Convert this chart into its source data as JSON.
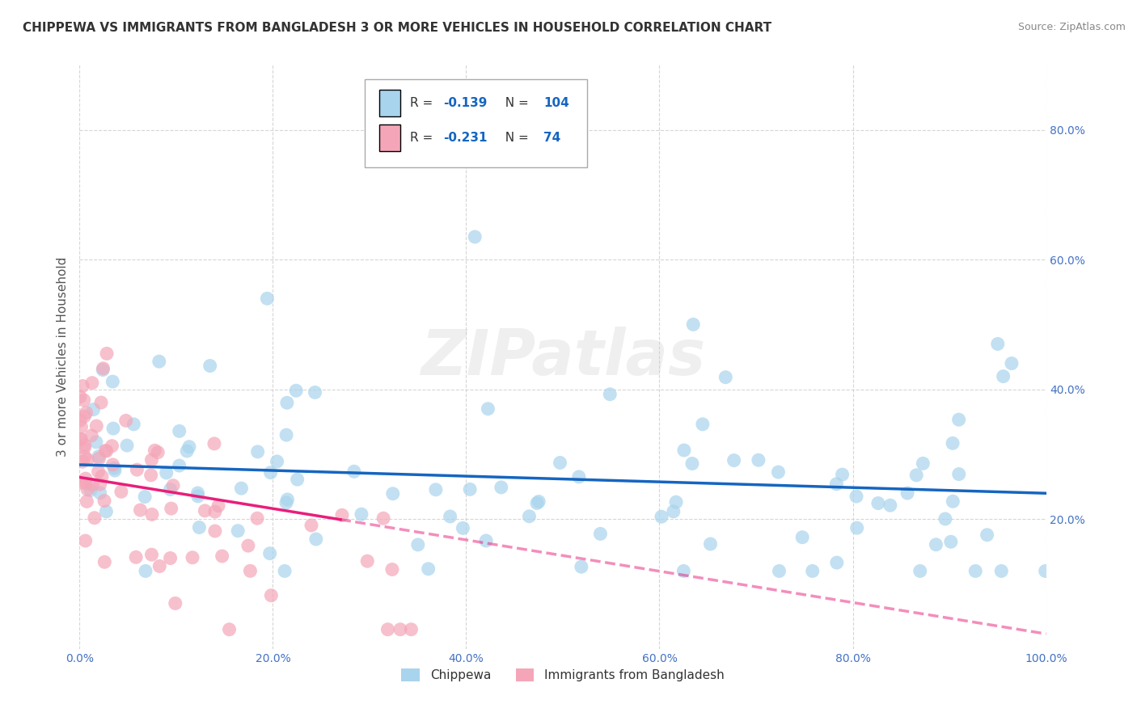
{
  "title": "CHIPPEWA VS IMMIGRANTS FROM BANGLADESH 3 OR MORE VEHICLES IN HOUSEHOLD CORRELATION CHART",
  "source": "Source: ZipAtlas.com",
  "ylabel": "3 or more Vehicles in Household",
  "xlim": [
    0.0,
    1.0
  ],
  "ylim": [
    0.0,
    0.9
  ],
  "xtick_labels": [
    "0.0%",
    "20.0%",
    "40.0%",
    "60.0%",
    "80.0%",
    "100.0%"
  ],
  "xtick_vals": [
    0.0,
    0.2,
    0.4,
    0.6,
    0.8,
    1.0
  ],
  "ytick_labels": [
    "20.0%",
    "40.0%",
    "60.0%",
    "80.0%"
  ],
  "ytick_vals": [
    0.2,
    0.4,
    0.6,
    0.8
  ],
  "chippewa_color": "#a8d4ed",
  "bangladesh_color": "#f4a6b8",
  "chippewa_line_color": "#1565c0",
  "bangladesh_line_color": "#e91e7a",
  "chippewa_R": -0.139,
  "chippewa_N": 104,
  "bangladesh_R": -0.231,
  "bangladesh_N": 74,
  "legend_label_1": "Chippewa",
  "legend_label_2": "Immigrants from Bangladesh",
  "watermark": "ZIPatlas",
  "title_fontsize": 11,
  "source_fontsize": 9,
  "tick_color": "#4472c4",
  "axis_label_color": "#555555"
}
